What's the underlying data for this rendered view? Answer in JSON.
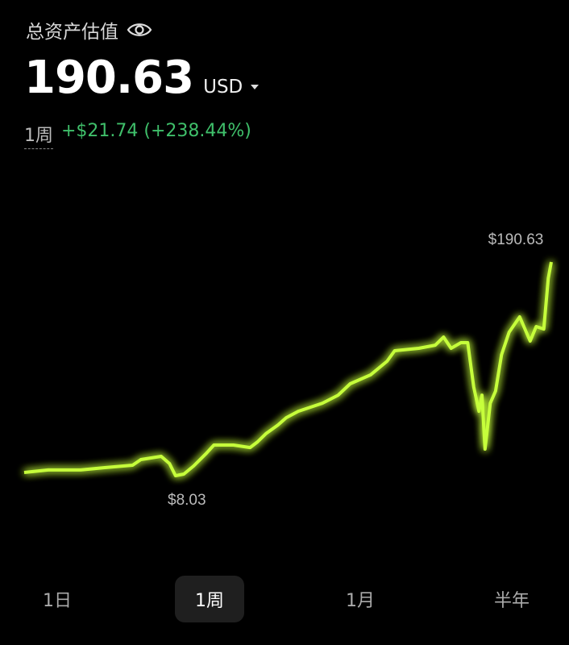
{
  "header": {
    "title": "总资产估值",
    "eye_icon": "eye-icon",
    "value": "190.63",
    "currency": "USD",
    "period": "1周",
    "change": "+$21.74 (+238.44%)",
    "colors": {
      "positive": "#3fbf6a"
    }
  },
  "chart_data": {
    "type": "line",
    "line_color": "#c6ff3a",
    "glow": true,
    "grid": false,
    "annotations": {
      "max": "$190.63",
      "min": "$8.03"
    },
    "ylim": [
      8.03,
      190.63
    ],
    "points": [
      [
        0,
        10.8
      ],
      [
        0.32,
        12.9
      ],
      [
        0.75,
        12.9
      ],
      [
        1.07,
        14.9
      ],
      [
        1.44,
        17.0
      ],
      [
        1.55,
        21.8
      ],
      [
        1.82,
        24.6
      ],
      [
        1.93,
        18.4
      ],
      [
        2.01,
        8.03
      ],
      [
        2.12,
        9.4
      ],
      [
        2.25,
        16.3
      ],
      [
        2.41,
        26.6
      ],
      [
        2.52,
        34.2
      ],
      [
        2.78,
        34.2
      ],
      [
        3.0,
        32.1
      ],
      [
        3.1,
        37.0
      ],
      [
        3.21,
        43.9
      ],
      [
        3.37,
        51.4
      ],
      [
        3.48,
        57.6
      ],
      [
        3.64,
        63.1
      ],
      [
        3.96,
        70.0
      ],
      [
        4.17,
        76.9
      ],
      [
        4.33,
        86.6
      ],
      [
        4.6,
        94.2
      ],
      [
        4.82,
        105.9
      ],
      [
        4.92,
        114.8
      ],
      [
        5.24,
        116.9
      ],
      [
        5.46,
        119.6
      ],
      [
        5.57,
        126.5
      ],
      [
        5.67,
        116.9
      ],
      [
        5.8,
        121.7
      ],
      [
        5.89,
        121.7
      ],
      [
        5.97,
        83.8
      ],
      [
        6.04,
        63.1
      ],
      [
        6.08,
        76.9
      ],
      [
        6.12,
        30.8
      ],
      [
        6.19,
        70.0
      ],
      [
        6.26,
        80.4
      ],
      [
        6.34,
        111.4
      ],
      [
        6.44,
        130.7
      ],
      [
        6.58,
        143.8
      ],
      [
        6.72,
        123.1
      ],
      [
        6.8,
        135.5
      ],
      [
        6.9,
        133.4
      ],
      [
        6.96,
        176.8
      ],
      [
        7.0,
        190.63
      ]
    ]
  },
  "tabs": [
    {
      "label": "1日",
      "active": false
    },
    {
      "label": "1周",
      "active": true
    },
    {
      "label": "1月",
      "active": false
    },
    {
      "label": "半年",
      "active": false
    }
  ]
}
